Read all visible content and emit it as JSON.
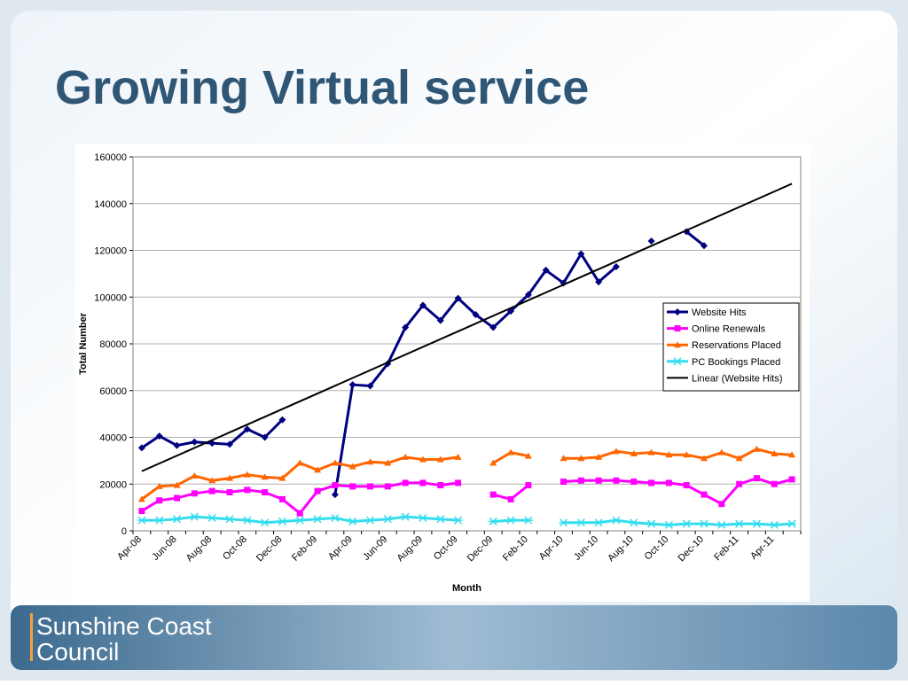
{
  "title": "Growing Virtual service",
  "footer": {
    "line1": "Sunshine Coast",
    "line2": "Council"
  },
  "chart_data": {
    "type": "line",
    "xlabel": "Month",
    "ylabel": "Total Number",
    "categories": [
      "Apr-08",
      null,
      "Jun-08",
      null,
      "Aug-08",
      null,
      "Oct-08",
      null,
      "Dec-08",
      null,
      "Feb-09",
      null,
      "Apr-09",
      null,
      "Jun-09",
      null,
      "Aug-09",
      null,
      "Oct-09",
      null,
      "Dec-09",
      null,
      "Feb-10",
      null,
      "Apr-10",
      null,
      "Jun-10",
      null,
      "Aug-10",
      null,
      "Oct-10",
      null,
      "Dec-10",
      null,
      "Feb-11",
      null,
      "Apr-11",
      null
    ],
    "ylim": [
      0,
      160000
    ],
    "yticks": [
      0,
      20000,
      40000,
      60000,
      80000,
      100000,
      120000,
      140000,
      160000
    ],
    "grid": true,
    "legend": "right",
    "series": [
      {
        "name": "Website Hits",
        "color": "#000080",
        "marker": "diamond",
        "values": [
          35500,
          40500,
          36500,
          38000,
          37500,
          37000,
          43500,
          40000,
          47500,
          null,
          null,
          15500,
          62500,
          62000,
          71500,
          87000,
          96500,
          90000,
          99500,
          92500,
          87000,
          94000,
          101000,
          111500,
          106000,
          118500,
          106500,
          113000,
          null,
          124000,
          null,
          128000,
          122000,
          null,
          null,
          null,
          null,
          null
        ]
      },
      {
        "name": "Online Renewals",
        "color": "#ff00ff",
        "marker": "square",
        "values": [
          8500,
          13000,
          14000,
          16000,
          17000,
          16500,
          17500,
          16500,
          13500,
          7500,
          17000,
          19500,
          19000,
          19000,
          19000,
          20500,
          20500,
          19500,
          20500,
          null,
          15500,
          13500,
          19500,
          null,
          21000,
          21500,
          21500,
          21500,
          21000,
          20500,
          20500,
          19500,
          15500,
          11500,
          20000,
          22500,
          20000,
          22000
        ]
      },
      {
        "name": "Reservations Placed",
        "color": "#ff6600",
        "marker": "triangle",
        "values": [
          13500,
          19000,
          19500,
          23500,
          21500,
          22500,
          24000,
          23000,
          22500,
          29000,
          26000,
          29000,
          27500,
          29500,
          29000,
          31500,
          30500,
          30500,
          31500,
          null,
          29000,
          33500,
          32000,
          null,
          31000,
          31000,
          31500,
          34000,
          33000,
          33500,
          32500,
          32500,
          31000,
          33500,
          31000,
          35000,
          33000,
          32500
        ]
      },
      {
        "name": "PC Bookings Placed",
        "color": "#33ddee",
        "marker": "x",
        "values": [
          4500,
          4500,
          5000,
          6000,
          5500,
          5000,
          4500,
          3500,
          4000,
          4500,
          5000,
          5500,
          4000,
          4500,
          5000,
          6000,
          5500,
          5000,
          4500,
          null,
          4000,
          4500,
          4500,
          null,
          3500,
          3500,
          3500,
          4500,
          3500,
          3000,
          2500,
          3000,
          3000,
          2500,
          3000,
          3000,
          2500,
          3000
        ]
      }
    ],
    "trendline": {
      "name": "Linear (Website Hits)",
      "color": "#000000",
      "start": 25500,
      "end": 148500
    }
  }
}
